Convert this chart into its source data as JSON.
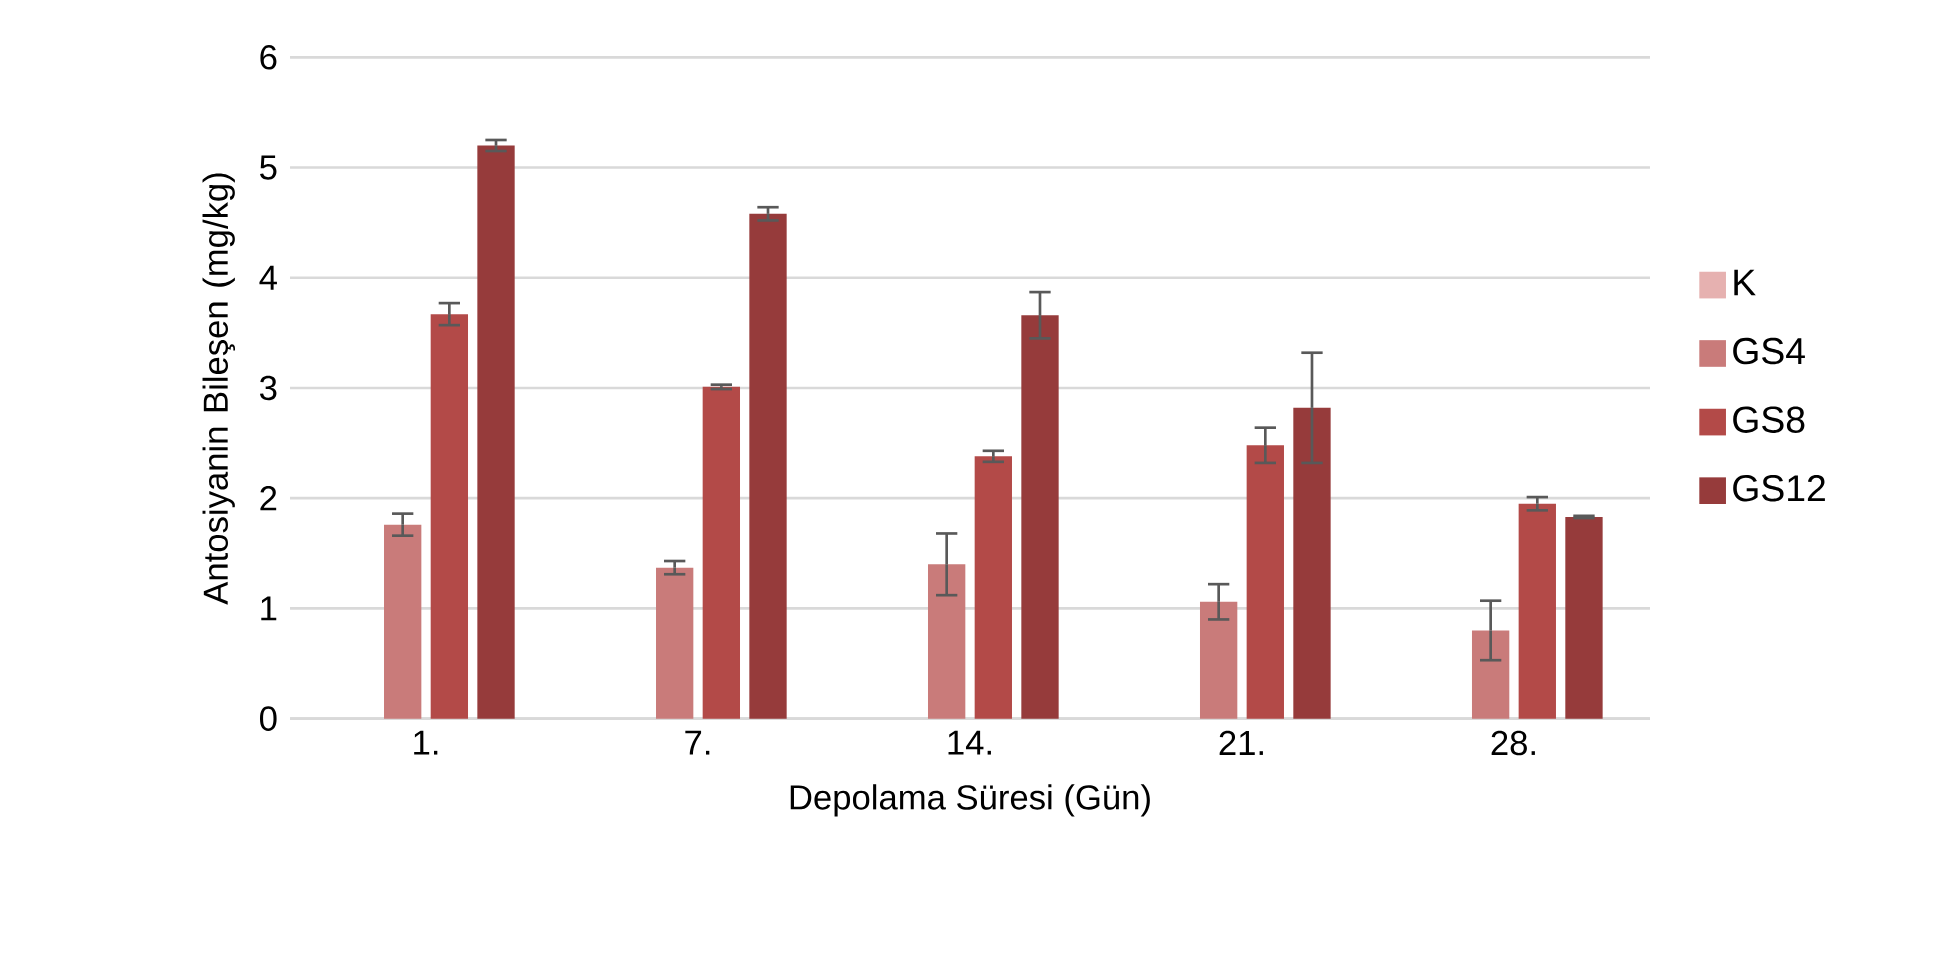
{
  "chart_data": {
    "type": "bar",
    "xlabel": "Depolama Süresi (Gün)",
    "ylabel": "Antosiyanin Bileşen (mg/kg)",
    "categories": [
      "1.",
      "7.",
      "14.",
      "21.",
      "28."
    ],
    "series": [
      {
        "name": "K",
        "color": "#e6b1b0",
        "values": [
          null,
          null,
          null,
          null,
          null
        ],
        "errors": [
          null,
          null,
          null,
          null,
          null
        ]
      },
      {
        "name": "GS4",
        "color": "#c97b7a",
        "values": [
          1.76,
          1.37,
          1.4,
          1.06,
          0.8
        ],
        "errors": [
          0.1,
          0.06,
          0.28,
          0.16,
          0.27
        ]
      },
      {
        "name": "GS8",
        "color": "#b34a48",
        "values": [
          3.67,
          3.01,
          2.38,
          2.48,
          1.95
        ],
        "errors": [
          0.1,
          0.02,
          0.05,
          0.16,
          0.06
        ]
      },
      {
        "name": "GS12",
        "color": "#963b3b",
        "values": [
          5.2,
          4.58,
          3.66,
          2.82,
          1.83
        ],
        "errors": [
          0.05,
          0.06,
          0.21,
          0.5,
          0.01
        ]
      }
    ],
    "ylim": [
      0,
      6
    ],
    "yticks": [
      0,
      1,
      2,
      3,
      4,
      5,
      6
    ],
    "grid": "y",
    "legend": "right"
  }
}
